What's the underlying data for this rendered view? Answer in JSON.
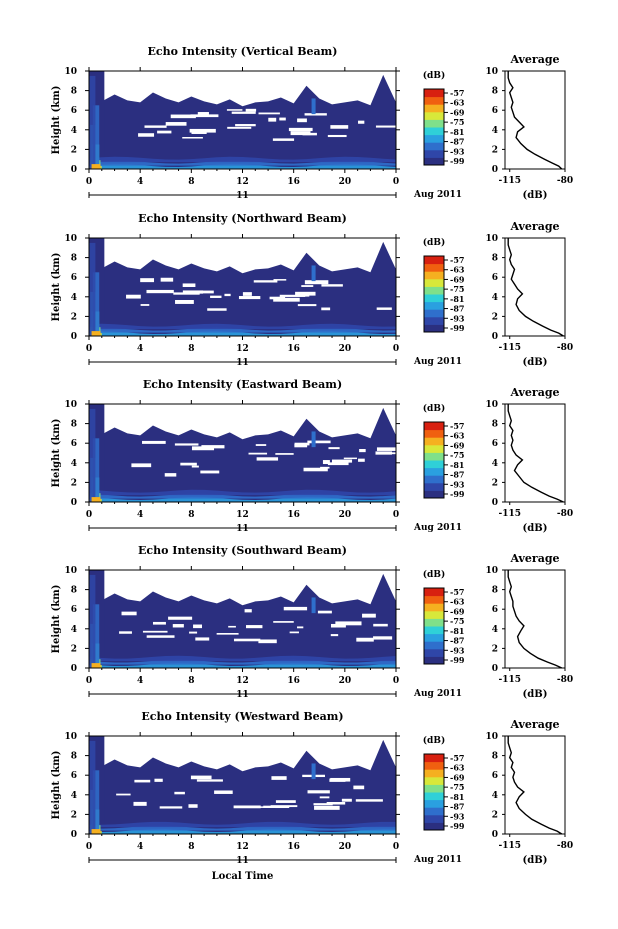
{
  "colors": {
    "scale": [
      "#2b2f80",
      "#2f46a8",
      "#2f6fcc",
      "#2aa0e0",
      "#2fd0d8",
      "#7fe08a",
      "#d8e83a",
      "#f5b020",
      "#f06010",
      "#d82010"
    ],
    "background": "#2b2f80"
  },
  "chart_data": [
    {
      "type": "heatmap",
      "title": "Echo Intensity (Vertical Beam)",
      "ylabel": "Height (km)",
      "x_ticks": [
        "0",
        "4",
        "8",
        "12",
        "16",
        "20",
        "0"
      ],
      "y_ticks": [
        "0",
        "2",
        "4",
        "6",
        "8",
        "10"
      ],
      "xlim": [
        0,
        24
      ],
      "ylim": [
        0,
        10
      ],
      "date_day": "11",
      "date_label": "Aug 2011",
      "colorbar": {
        "unit": "(dB)",
        "levels": [
          "-57",
          "-63",
          "-69",
          "-75",
          "-81",
          "-87",
          "-93",
          "-99"
        ]
      },
      "average": {
        "title": "Average",
        "xlabel": "(dB)",
        "x_ticks": [
          "-115",
          "-80"
        ],
        "xlim": [
          -118,
          -80
        ],
        "y_ticks": [
          "0",
          "2",
          "4",
          "6",
          "8",
          "10"
        ],
        "profile": [
          [
            -82,
            0
          ],
          [
            -84,
            0.3
          ],
          [
            -88,
            0.6
          ],
          [
            -93,
            1.0
          ],
          [
            -99,
            1.5
          ],
          [
            -104,
            2.0
          ],
          [
            -108,
            2.6
          ],
          [
            -111,
            3.2
          ],
          [
            -110,
            3.8
          ],
          [
            -106,
            4.3
          ],
          [
            -109,
            4.8
          ],
          [
            -112,
            5.3
          ],
          [
            -113,
            5.8
          ],
          [
            -114,
            6.3
          ],
          [
            -113,
            6.8
          ],
          [
            -114,
            7.3
          ],
          [
            -115,
            7.8
          ],
          [
            -113,
            8.3
          ],
          [
            -115,
            8.8
          ],
          [
            -116,
            9.3
          ],
          [
            -116,
            10
          ]
        ]
      }
    },
    {
      "type": "heatmap",
      "title": "Echo Intensity (Northward Beam)",
      "ylabel": "Height (km)",
      "x_ticks": [
        "0",
        "4",
        "8",
        "12",
        "16",
        "20",
        "0"
      ],
      "y_ticks": [
        "0",
        "2",
        "4",
        "6",
        "8",
        "10"
      ],
      "xlim": [
        0,
        24
      ],
      "ylim": [
        0,
        10
      ],
      "date_day": "11",
      "date_label": "Aug 2011",
      "colorbar": {
        "unit": "(dB)",
        "levels": [
          "-57",
          "-63",
          "-69",
          "-75",
          "-81",
          "-87",
          "-93",
          "-99"
        ]
      },
      "average": {
        "title": "Average",
        "xlabel": "(dB)",
        "x_ticks": [
          "-115",
          "-80"
        ],
        "xlim": [
          -118,
          -80
        ],
        "y_ticks": [
          "0",
          "2",
          "4",
          "6",
          "8",
          "10"
        ],
        "profile": [
          [
            -81,
            0
          ],
          [
            -84,
            0.3
          ],
          [
            -89,
            0.6
          ],
          [
            -94,
            1.0
          ],
          [
            -100,
            1.5
          ],
          [
            -105,
            2.0
          ],
          [
            -109,
            2.6
          ],
          [
            -111,
            3.2
          ],
          [
            -110,
            3.8
          ],
          [
            -107,
            4.3
          ],
          [
            -110,
            4.8
          ],
          [
            -112,
            5.3
          ],
          [
            -114,
            5.8
          ],
          [
            -113,
            6.3
          ],
          [
            -112,
            6.8
          ],
          [
            -114,
            7.3
          ],
          [
            -115,
            7.8
          ],
          [
            -114,
            8.3
          ],
          [
            -115,
            8.8
          ],
          [
            -116,
            9.3
          ],
          [
            -116,
            10
          ]
        ]
      }
    },
    {
      "type": "heatmap",
      "title": "Echo Intensity (Eastward Beam)",
      "ylabel": "Height (km)",
      "x_ticks": [
        "0",
        "4",
        "8",
        "12",
        "16",
        "20",
        "0"
      ],
      "y_ticks": [
        "0",
        "2",
        "4",
        "6",
        "8",
        "10"
      ],
      "xlim": [
        0,
        24
      ],
      "ylim": [
        0,
        10
      ],
      "date_day": "11",
      "date_label": "Aug 2011",
      "colorbar": {
        "unit": "(dB)",
        "levels": [
          "-57",
          "-63",
          "-69",
          "-75",
          "-81",
          "-87",
          "-93",
          "-99"
        ]
      },
      "average": {
        "title": "Average",
        "xlabel": "(dB)",
        "x_ticks": [
          "-115",
          "-80"
        ],
        "xlim": [
          -118,
          -80
        ],
        "y_ticks": [
          "0",
          "2",
          "4",
          "6",
          "8",
          "10"
        ],
        "profile": [
          [
            -81,
            0
          ],
          [
            -85,
            0.3
          ],
          [
            -90,
            0.6
          ],
          [
            -95,
            1.0
          ],
          [
            -101,
            1.5
          ],
          [
            -106,
            2.0
          ],
          [
            -109,
            2.6
          ],
          [
            -112,
            3.2
          ],
          [
            -110,
            3.8
          ],
          [
            -107,
            4.3
          ],
          [
            -111,
            4.8
          ],
          [
            -113,
            5.3
          ],
          [
            -114,
            5.8
          ],
          [
            -113,
            6.3
          ],
          [
            -114,
            6.8
          ],
          [
            -113,
            7.3
          ],
          [
            -115,
            7.8
          ],
          [
            -114,
            8.3
          ],
          [
            -115,
            8.8
          ],
          [
            -116,
            9.3
          ],
          [
            -116,
            10
          ]
        ]
      }
    },
    {
      "type": "heatmap",
      "title": "Echo Intensity (Southward Beam)",
      "ylabel": "Height (km)",
      "x_ticks": [
        "0",
        "4",
        "8",
        "12",
        "16",
        "20",
        "0"
      ],
      "y_ticks": [
        "0",
        "2",
        "4",
        "6",
        "8",
        "10"
      ],
      "xlim": [
        0,
        24
      ],
      "ylim": [
        0,
        10
      ],
      "date_day": "11",
      "date_label": "Aug 2011",
      "colorbar": {
        "unit": "(dB)",
        "levels": [
          "-57",
          "-63",
          "-69",
          "-75",
          "-81",
          "-87",
          "-93",
          "-99"
        ]
      },
      "average": {
        "title": "Average",
        "xlabel": "(dB)",
        "x_ticks": [
          "-115",
          "-80"
        ],
        "xlim": [
          -118,
          -80
        ],
        "y_ticks": [
          "0",
          "2",
          "4",
          "6",
          "8",
          "10"
        ],
        "profile": [
          [
            -82,
            0
          ],
          [
            -86,
            0.3
          ],
          [
            -91,
            0.6
          ],
          [
            -97,
            1.0
          ],
          [
            -102,
            1.5
          ],
          [
            -106,
            2.0
          ],
          [
            -109,
            2.6
          ],
          [
            -110,
            3.2
          ],
          [
            -108,
            3.8
          ],
          [
            -106,
            4.3
          ],
          [
            -109,
            4.8
          ],
          [
            -111,
            5.3
          ],
          [
            -112,
            5.8
          ],
          [
            -113,
            6.3
          ],
          [
            -113,
            6.8
          ],
          [
            -114,
            7.3
          ],
          [
            -115,
            7.8
          ],
          [
            -114,
            8.3
          ],
          [
            -115,
            8.8
          ],
          [
            -116,
            9.3
          ],
          [
            -116,
            10
          ]
        ]
      }
    },
    {
      "type": "heatmap",
      "title": "Echo Intensity (Westward Beam)",
      "ylabel": "Height (km)",
      "x_ticks": [
        "0",
        "4",
        "8",
        "12",
        "16",
        "20",
        "0"
      ],
      "y_ticks": [
        "0",
        "2",
        "4",
        "6",
        "8",
        "10"
      ],
      "xlim": [
        0,
        24
      ],
      "ylim": [
        0,
        10
      ],
      "date_day": "11",
      "date_label": "Aug 2011",
      "colorbar": {
        "unit": "(dB)",
        "levels": [
          "-57",
          "-63",
          "-69",
          "-75",
          "-81",
          "-87",
          "-93",
          "-99"
        ]
      },
      "average": {
        "title": "Average",
        "xlabel": "(dB)",
        "x_ticks": [
          "-115",
          "-80"
        ],
        "xlim": [
          -118,
          -80
        ],
        "y_ticks": [
          "0",
          "2",
          "4",
          "6",
          "8",
          "10"
        ],
        "profile": [
          [
            -82,
            0
          ],
          [
            -85,
            0.3
          ],
          [
            -90,
            0.6
          ],
          [
            -95,
            1.0
          ],
          [
            -101,
            1.5
          ],
          [
            -105,
            2.0
          ],
          [
            -109,
            2.6
          ],
          [
            -111,
            3.2
          ],
          [
            -109,
            3.8
          ],
          [
            -106,
            4.3
          ],
          [
            -110,
            4.8
          ],
          [
            -112,
            5.3
          ],
          [
            -113,
            5.8
          ],
          [
            -112,
            6.3
          ],
          [
            -114,
            6.8
          ],
          [
            -113,
            7.3
          ],
          [
            -115,
            7.8
          ],
          [
            -114,
            8.3
          ],
          [
            -115,
            8.8
          ],
          [
            -116,
            9.3
          ],
          [
            -116,
            10
          ]
        ]
      }
    }
  ],
  "xlabel": "Local Time"
}
